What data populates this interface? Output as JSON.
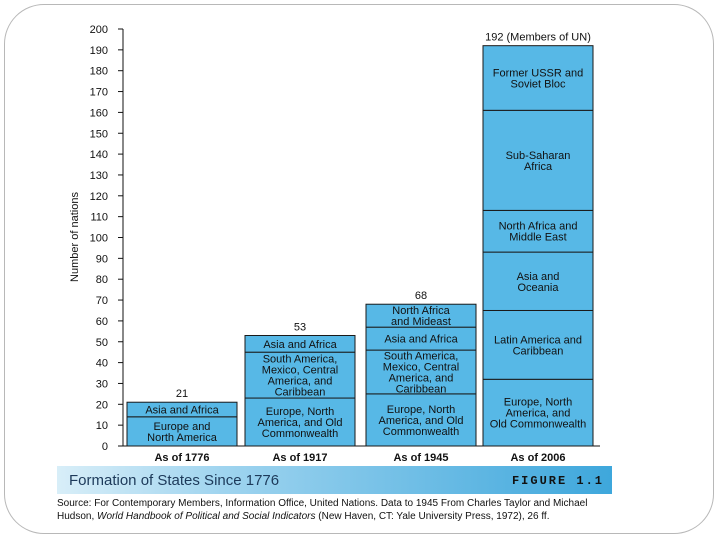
{
  "chart_data": {
    "type": "bar",
    "stacked": true,
    "title": "Formation of States Since 1776",
    "figure_label": "FIGURE 1.1",
    "ylabel": "Number of nations",
    "xlabel": "",
    "ylim": [
      0,
      200
    ],
    "ytick_step": 10,
    "yticks": [
      "0",
      "10",
      "20",
      "30",
      "40",
      "50",
      "60",
      "70",
      "80",
      "90",
      "100",
      "110",
      "120",
      "130",
      "140",
      "150",
      "160",
      "170",
      "180",
      "190",
      "200"
    ],
    "grid": false,
    "categories": [
      "As of 1776",
      "As of 1917",
      "As of 1945",
      "As of 2006"
    ],
    "totals": [
      21,
      53,
      68,
      192
    ],
    "total_labels": [
      "21",
      "53",
      "68",
      "192 (Members of UN)"
    ],
    "bars": [
      {
        "category": "As of 1776",
        "segments": [
          {
            "label": [
              "Europe and",
              "North America"
            ],
            "value": 14
          },
          {
            "label": [
              "Asia and Africa"
            ],
            "value": 7
          }
        ]
      },
      {
        "category": "As of 1917",
        "segments": [
          {
            "label": [
              "Europe, North",
              "America, and Old",
              "Commonwealth"
            ],
            "value": 23
          },
          {
            "label": [
              "South America,",
              "Mexico, Central",
              "America, and",
              "Caribbean"
            ],
            "value": 22
          },
          {
            "label": [
              "Asia and Africa"
            ],
            "value": 8
          }
        ]
      },
      {
        "category": "As of 1945",
        "segments": [
          {
            "label": [
              "Europe, North",
              "America, and Old",
              "Commonwealth"
            ],
            "value": 25
          },
          {
            "label": [
              "South America,",
              "Mexico, Central",
              "America, and",
              "Caribbean"
            ],
            "value": 21
          },
          {
            "label": [
              "Asia and Africa"
            ],
            "value": 11
          },
          {
            "label": [
              "North Africa",
              "and Mideast"
            ],
            "value": 11
          }
        ]
      },
      {
        "category": "As of 2006",
        "segments": [
          {
            "label": [
              "Europe, North",
              "America, and",
              "Old Commonwealth"
            ],
            "value": 32
          },
          {
            "label": [
              "Latin America and",
              "Caribbean"
            ],
            "value": 33
          },
          {
            "label": [
              "Asia and",
              "Oceania"
            ],
            "value": 28
          },
          {
            "label": [
              "North Africa and",
              "Middle East"
            ],
            "value": 20
          },
          {
            "label": [
              "Sub-Saharan",
              "Africa"
            ],
            "value": 48
          },
          {
            "label": [
              "Former USSR and",
              "Soviet Bloc"
            ],
            "value": 31
          }
        ]
      }
    ]
  },
  "source": {
    "prefix": "Source: For Contemporary Members, Information Office, United Nations. Data to 1945 From Charles Taylor and Michael Hudson, ",
    "italic": "World Handbook of Political and Social Indicators",
    "suffix": " (New Haven, CT: Yale University Press, 1972), 26 ff."
  }
}
